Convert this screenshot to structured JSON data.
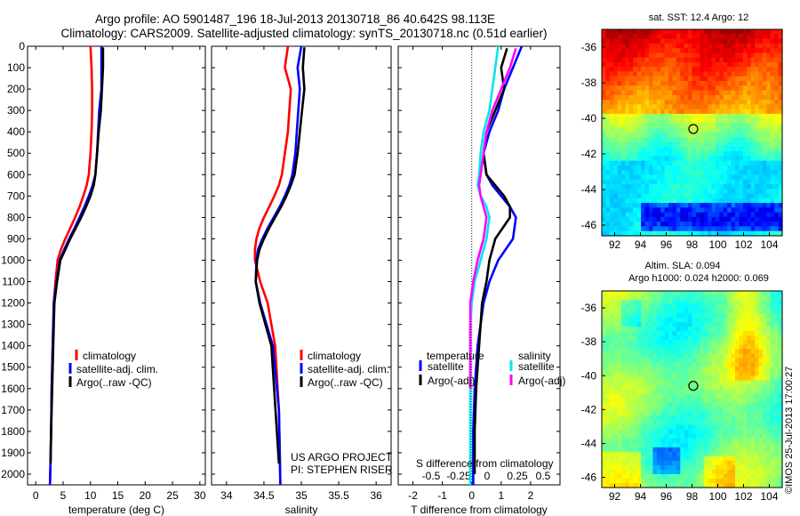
{
  "header": {
    "line1": "Argo profile: AO 5901487_196 18-Jul-2013 20130718_86 40.642S 98.113E",
    "line2": "Climatology: CARS2009. Satellite-adjusted climatology: synTS_20130718.nc (0.51d earlier)"
  },
  "colors": {
    "climatology": "#ff0000",
    "satellite": "#0000ff",
    "argo": "#000000",
    "s_satellite": "#00e5ee",
    "s_argo": "#ff00ff"
  },
  "chart_data": [
    {
      "type": "line",
      "xlabel": "temperature (deg C)",
      "ylabel": "",
      "xlim": [
        -1.5,
        31
      ],
      "ylim": [
        2050,
        0
      ],
      "xticks": [
        "0",
        "5",
        "10",
        "15",
        "20",
        "25",
        "30"
      ],
      "xtick_values": [
        0,
        5,
        10,
        15,
        20,
        25,
        30
      ],
      "yticks": [
        "0",
        "100",
        "200",
        "300",
        "400",
        "500",
        "600",
        "700",
        "800",
        "900",
        "1000",
        "1100",
        "1200",
        "1300",
        "1400",
        "1500",
        "1600",
        "1700",
        "1800",
        "1900",
        "2000"
      ],
      "ytick_values": [
        0,
        100,
        200,
        300,
        400,
        500,
        600,
        700,
        800,
        900,
        1000,
        1100,
        1200,
        1300,
        1400,
        1500,
        1600,
        1700,
        1800,
        1900,
        2000
      ],
      "legend": [
        "climatology",
        "satellite-adj. clim.",
        "Argo(..raw -QC)"
      ],
      "series": [
        {
          "name": "climatology",
          "color": "#ff0000",
          "x": [
            10.0,
            10.2,
            10.3,
            10.3,
            10.2,
            10.0,
            9.7,
            9.3,
            8.7,
            8.0,
            7.2,
            6.3,
            5.4,
            4.6,
            4.0,
            3.6,
            3.3,
            3.1,
            2.9,
            2.8,
            2.7,
            2.6
          ],
          "y": [
            0,
            100,
            200,
            300,
            400,
            500,
            600,
            650,
            700,
            750,
            800,
            850,
            900,
            950,
            1000,
            1100,
            1200,
            1400,
            1600,
            1800,
            1950,
            2050
          ]
        },
        {
          "name": "satellite-adj. clim.",
          "color": "#0000ff",
          "x": [
            12.0,
            12.0,
            12.0,
            11.6,
            11.4,
            11.2,
            10.9,
            10.4,
            9.7,
            8.9,
            8.0,
            7.1,
            6.1,
            5.2,
            4.4,
            3.8,
            3.3,
            3.1,
            2.9,
            2.8,
            2.7,
            2.6
          ],
          "y": [
            0,
            100,
            200,
            300,
            400,
            500,
            600,
            650,
            700,
            750,
            800,
            850,
            900,
            950,
            1000,
            1100,
            1200,
            1400,
            1600,
            1800,
            1950,
            2050
          ]
        },
        {
          "name": "Argo(..raw -QC)",
          "color": "#000000",
          "x": [
            12.3,
            12.3,
            12.1,
            11.9,
            11.5,
            11.2,
            10.9,
            10.6,
            10.0,
            9.2,
            8.3,
            7.3,
            6.3,
            5.4,
            4.5,
            3.9,
            3.4,
            3.2,
            3.0,
            2.8,
            2.7
          ],
          "y": [
            5,
            100,
            200,
            300,
            400,
            500,
            600,
            650,
            700,
            750,
            800,
            850,
            900,
            950,
            1000,
            1100,
            1200,
            1400,
            1600,
            1800,
            1950
          ]
        }
      ]
    },
    {
      "type": "line",
      "xlabel": "salinity",
      "ylabel": "",
      "xlim": [
        33.8,
        36.2
      ],
      "ylim": [
        2050,
        0
      ],
      "xticks": [
        "34",
        "34.5",
        "35",
        "35.5",
        "36"
      ],
      "xtick_values": [
        34,
        34.5,
        35,
        35.5,
        36
      ],
      "legend": [
        "climatology",
        "satellite-adj. clim.",
        "Argo(..raw -QC)"
      ],
      "annotation": [
        "US ARGO PROJECT",
        "PI: STEPHEN RISER"
      ],
      "series": [
        {
          "name": "climatology",
          "color": "#ff0000",
          "x": [
            34.82,
            34.78,
            34.86,
            34.84,
            34.82,
            34.78,
            34.74,
            34.7,
            34.64,
            34.57,
            34.5,
            34.44,
            34.4,
            34.38,
            34.38,
            34.45,
            34.55,
            34.65,
            34.7,
            34.72
          ],
          "y": [
            0,
            100,
            200,
            300,
            400,
            500,
            600,
            650,
            700,
            750,
            800,
            850,
            900,
            950,
            1000,
            1100,
            1200,
            1400,
            1700,
            2050
          ]
        },
        {
          "name": "satellite-adj. clim.",
          "color": "#0000ff",
          "x": [
            35.0,
            34.95,
            34.98,
            34.96,
            34.94,
            34.92,
            34.88,
            34.84,
            34.78,
            34.71,
            34.63,
            34.55,
            34.48,
            34.42,
            34.4,
            34.39,
            34.45,
            34.62,
            34.7,
            34.72
          ],
          "y": [
            0,
            100,
            200,
            300,
            400,
            500,
            600,
            650,
            700,
            750,
            800,
            850,
            900,
            950,
            1000,
            1100,
            1200,
            1400,
            1700,
            2050
          ]
        },
        {
          "name": "Argo(..raw -QC)",
          "color": "#000000",
          "x": [
            35.04,
            35.02,
            35.04,
            35.01,
            34.98,
            34.95,
            34.91,
            34.86,
            34.8,
            34.73,
            34.65,
            34.57,
            34.5,
            34.44,
            34.41,
            34.39,
            34.44,
            34.6,
            34.7
          ],
          "y": [
            5,
            100,
            200,
            300,
            400,
            500,
            600,
            650,
            700,
            750,
            800,
            850,
            900,
            950,
            1000,
            1100,
            1200,
            1400,
            1950
          ]
        }
      ]
    },
    {
      "type": "line",
      "xlabel": "T difference from climatology",
      "ylabel": "",
      "xlim": [
        -2.5,
        3.0
      ],
      "ylim": [
        2050,
        0
      ],
      "xticks": [
        "-2",
        "-1",
        "0",
        "1",
        "2"
      ],
      "xtick_values": [
        -2,
        -1,
        0,
        1,
        2
      ],
      "top_axis_label": "S difference from climatology",
      "top_axis_ticks": [
        "-0.5",
        "-0.25",
        "0",
        "0.25",
        "0.5"
      ],
      "legend_title_left": "temperature",
      "legend_title_right": "salinity",
      "legend": [
        "satellite",
        "Argo(-adj)",
        "satellite",
        "Argo(-adj)"
      ],
      "series": [
        {
          "name": "satellite",
          "color": "#0000ff",
          "x": [
            1.7,
            1.4,
            1.1,
            0.9,
            0.6,
            0.4,
            0.5,
            0.7,
            1.0,
            1.3,
            1.5,
            1.4,
            0.9,
            0.6,
            0.4,
            0.3,
            0.2,
            0.1,
            0.05,
            0.05
          ],
          "y": [
            0,
            100,
            200,
            300,
            400,
            500,
            600,
            650,
            700,
            750,
            800,
            900,
            1000,
            1100,
            1200,
            1300,
            1400,
            1600,
            1800,
            2050
          ]
        },
        {
          "name": "Argo(-adj)",
          "color": "#000000",
          "x": [
            1.2,
            1.0,
            1.1,
            0.8,
            0.5,
            0.4,
            0.5,
            0.8,
            1.1,
            1.3,
            1.3,
            0.8,
            0.6,
            0.5,
            0.35,
            0.3,
            0.25,
            0.15,
            0.1,
            0.1
          ],
          "y": [
            10,
            100,
            200,
            300,
            400,
            500,
            600,
            650,
            700,
            750,
            800,
            900,
            1000,
            1100,
            1200,
            1300,
            1400,
            1600,
            1800,
            2000
          ]
        },
        {
          "name": "satellite",
          "color": "#00e5ee",
          "x": [
            0.9,
            0.8,
            0.7,
            0.6,
            0.4,
            0.3,
            0.25,
            0.2,
            0.3,
            0.5,
            0.6,
            0.5,
            0.3,
            0.1,
            0.0,
            -0.05,
            -0.05,
            -0.05,
            -0.05,
            -0.05
          ],
          "y": [
            0,
            100,
            200,
            300,
            400,
            500,
            600,
            650,
            700,
            750,
            800,
            900,
            1000,
            1100,
            1200,
            1300,
            1400,
            1600,
            1800,
            2050
          ]
        },
        {
          "name": "Argo(-adj)",
          "color": "#ff00ff",
          "x": [
            1.5,
            1.3,
            1.0,
            0.7,
            0.5,
            0.4,
            0.3,
            0.25,
            0.3,
            0.4,
            0.5,
            0.4,
            0.2,
            0.05,
            -0.05,
            -0.05,
            -0.05
          ],
          "y": [
            10,
            100,
            200,
            300,
            400,
            500,
            600,
            650,
            700,
            750,
            800,
            900,
            1000,
            1100,
            1200,
            1400,
            1600
          ]
        }
      ]
    },
    {
      "type": "heatmap",
      "title": "sat. SST: 12.4 Argo: 12",
      "xticks": [
        "92",
        "94",
        "96",
        "98",
        "100",
        "102",
        "104"
      ],
      "yticks": [
        "-36",
        "-38",
        "-40",
        "-42",
        "-44",
        "-46"
      ],
      "marker": {
        "lon": 98.1,
        "lat": -40.6
      }
    },
    {
      "type": "heatmap",
      "title_lines": [
        "Altim. SLA: 0.094",
        "Argo h1000: 0.024 h2000: 0.069"
      ],
      "xticks": [
        "92",
        "94",
        "96",
        "98",
        "100",
        "102",
        "104"
      ],
      "yticks": [
        "-36",
        "-38",
        "-40",
        "-42",
        "-44",
        "-46"
      ],
      "marker": {
        "lon": 98.1,
        "lat": -40.6
      }
    }
  ],
  "footer": {
    "timestamp": "©IMOS 25-Jul-2013 17:00:27"
  }
}
